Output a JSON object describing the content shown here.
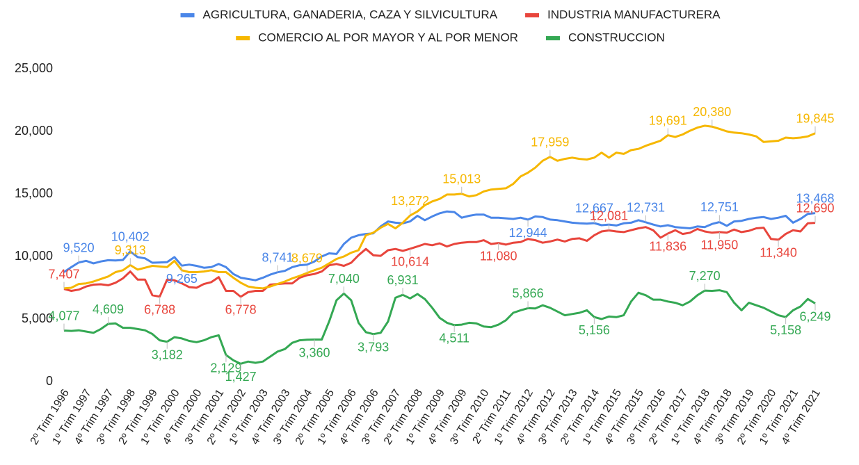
{
  "chart_data": {
    "type": "line",
    "categories": [
      "2º Trim 1996",
      null,
      null,
      "1º Trim 1997",
      null,
      null,
      "4º Trim 1997",
      null,
      null,
      "3º Trim 1998",
      null,
      null,
      "2º Trim 1999",
      null,
      null,
      "1º Trim 2000",
      null,
      null,
      "4º Trim 2000",
      null,
      null,
      "3º Trim 2001",
      null,
      null,
      "2º Trim 2002",
      null,
      null,
      "1º Trim 2003",
      null,
      null,
      "4º Trim 2003",
      null,
      null,
      "3º Trim 2004",
      null,
      null,
      "2º Trim 2005",
      null,
      null,
      "1º Trim 2006",
      null,
      null,
      "4º Trim 2006",
      null,
      null,
      "3º Trim 2007",
      null,
      null,
      "2º Trim 2008",
      null,
      null,
      "1º Trim 2009",
      null,
      null,
      "4º Trim 2009",
      null,
      null,
      "3º Trim 2010",
      null,
      null,
      "2º Trim 2011",
      null,
      null,
      "1º Trim 2012",
      null,
      null,
      "4º Trim 2012",
      null,
      null,
      "3º Trim 2013",
      null,
      null,
      "2º Trim 2014",
      null,
      null,
      "1º Trim 2015",
      null,
      null,
      "4º Trim 2015",
      null,
      null,
      "3º Trim 2016",
      null,
      null,
      "2º Trim 2017",
      null,
      null,
      "1º Trim 2018",
      null,
      null,
      "4º Trim 2018",
      null,
      null,
      "3º Trim 2019",
      null,
      null,
      "2º Trim 2020",
      null,
      null,
      "1º Trim 2021",
      null,
      null,
      "4º Trim 2021"
    ],
    "series": [
      {
        "name": "AGRICULTURA, GANADERIA, CAZA Y SILVICULTURA",
        "color": "#4a86e8",
        "values": [
          8750,
          9150,
          9520,
          9650,
          9450,
          9600,
          9700,
          9680,
          9720,
          10402,
          9950,
          9850,
          9500,
          9520,
          9550,
          9950,
          9265,
          9350,
          9250,
          9100,
          9150,
          9400,
          9150,
          8600,
          8300,
          8200,
          8100,
          8300,
          8550,
          8741,
          8850,
          9150,
          9300,
          9350,
          9600,
          10000,
          10250,
          10200,
          11000,
          11500,
          11700,
          11800,
          11850,
          12400,
          12800,
          12700,
          12650,
          12800,
          13250,
          12900,
          13200,
          13450,
          13600,
          13550,
          13100,
          13250,
          13350,
          13350,
          13100,
          13100,
          13050,
          13000,
          13100,
          12944,
          13200,
          13150,
          12950,
          12900,
          12800,
          12700,
          12650,
          12620,
          12667,
          12500,
          12550,
          12480,
          12650,
          12700,
          12900,
          12731,
          12550,
          12400,
          12500,
          12350,
          12300,
          12250,
          12400,
          12350,
          12600,
          12751,
          12450,
          12800,
          12850,
          13000,
          13100,
          13150,
          13000,
          13100,
          13250,
          12700,
          13000,
          13400,
          13468
        ],
        "value_labels": [
          null,
          null,
          "9,520",
          null,
          null,
          null,
          null,
          null,
          null,
          "10,402",
          null,
          null,
          null,
          null,
          null,
          null,
          "9,265",
          null,
          null,
          null,
          null,
          null,
          null,
          null,
          null,
          null,
          null,
          null,
          null,
          "8,741",
          null,
          null,
          null,
          null,
          null,
          null,
          null,
          null,
          null,
          null,
          null,
          null,
          null,
          null,
          null,
          null,
          null,
          null,
          null,
          null,
          null,
          null,
          null,
          null,
          null,
          null,
          null,
          null,
          null,
          null,
          null,
          null,
          null,
          "12,944",
          null,
          null,
          null,
          null,
          null,
          null,
          null,
          null,
          "12,667",
          null,
          null,
          null,
          null,
          null,
          null,
          "12,731",
          null,
          null,
          null,
          null,
          null,
          null,
          null,
          null,
          null,
          "12,751",
          null,
          null,
          null,
          null,
          null,
          null,
          null,
          null,
          null,
          null,
          null,
          null,
          "13,468"
        ]
      },
      {
        "name": "INDUSTRIA MANUFACTURERA",
        "color": "#e8453c",
        "values": [
          7407,
          7250,
          7350,
          7600,
          7750,
          7780,
          7700,
          7900,
          8250,
          8800,
          8150,
          8150,
          6900,
          6788,
          8150,
          8100,
          7850,
          7550,
          7500,
          7800,
          7950,
          8350,
          7250,
          7250,
          6778,
          7150,
          7250,
          7250,
          7750,
          7800,
          7850,
          7850,
          8300,
          8500,
          8600,
          8800,
          9300,
          9400,
          9250,
          9500,
          10100,
          10600,
          10100,
          10050,
          10500,
          10600,
          10450,
          10614,
          10800,
          11000,
          10900,
          11050,
          10800,
          11000,
          11100,
          11150,
          11150,
          11300,
          11000,
          11080,
          10950,
          11100,
          11150,
          11400,
          11300,
          11100,
          11200,
          11350,
          11200,
          11400,
          11450,
          11250,
          11700,
          12000,
          12081,
          12000,
          11950,
          12100,
          12250,
          12350,
          12100,
          11500,
          11836,
          12100,
          11800,
          11900,
          12200,
          12000,
          11900,
          11950,
          11900,
          12150,
          11950,
          12050,
          12250,
          12300,
          11400,
          11340,
          11800,
          12100,
          12000,
          12650,
          12690
        ],
        "value_labels": [
          "7,407",
          null,
          null,
          null,
          null,
          null,
          null,
          null,
          null,
          null,
          null,
          null,
          null,
          "6,788",
          null,
          null,
          null,
          null,
          null,
          null,
          null,
          null,
          null,
          null,
          "6,778",
          null,
          null,
          null,
          null,
          null,
          null,
          null,
          null,
          null,
          null,
          null,
          null,
          null,
          null,
          null,
          null,
          null,
          null,
          null,
          null,
          null,
          null,
          "10,614",
          null,
          null,
          null,
          null,
          null,
          null,
          null,
          null,
          null,
          null,
          null,
          "11,080",
          null,
          null,
          null,
          null,
          null,
          null,
          null,
          null,
          null,
          null,
          null,
          null,
          null,
          null,
          "12,081",
          null,
          null,
          null,
          null,
          null,
          null,
          null,
          "11,836",
          null,
          null,
          null,
          null,
          null,
          null,
          "11,950",
          null,
          null,
          null,
          null,
          null,
          null,
          null,
          "11,340",
          null,
          null,
          null,
          null,
          "12,690"
        ]
      },
      {
        "name": "COMERCIO AL POR MAYOR Y AL POR MENOR",
        "color": "#f6b700",
        "values": [
          7450,
          7500,
          7800,
          7850,
          8000,
          8200,
          8400,
          8750,
          8900,
          9313,
          8950,
          9100,
          9250,
          9200,
          9150,
          9650,
          8900,
          8750,
          8750,
          8800,
          8900,
          8750,
          8750,
          8300,
          7900,
          7600,
          7500,
          7450,
          7600,
          7800,
          8000,
          8250,
          8450,
          8679,
          8900,
          9100,
          9450,
          9800,
          10000,
          10300,
          10500,
          11700,
          11900,
          12300,
          12600,
          12250,
          12700,
          13272,
          13600,
          14100,
          14400,
          14600,
          14950,
          14950,
          15013,
          14800,
          14900,
          15200,
          15350,
          15400,
          15450,
          15800,
          16400,
          16700,
          17100,
          17650,
          17959,
          17650,
          17800,
          17900,
          17800,
          17750,
          17900,
          18300,
          17900,
          18300,
          18200,
          18500,
          18600,
          18850,
          19050,
          19250,
          19691,
          19550,
          19750,
          20050,
          20300,
          20450,
          20380,
          20200,
          20000,
          19900,
          19850,
          19750,
          19600,
          19150,
          19200,
          19250,
          19500,
          19450,
          19500,
          19600,
          19845
        ],
        "value_labels": [
          null,
          null,
          null,
          null,
          null,
          null,
          null,
          null,
          null,
          "9,313",
          null,
          null,
          null,
          null,
          null,
          null,
          null,
          null,
          null,
          null,
          null,
          null,
          null,
          null,
          null,
          null,
          null,
          null,
          null,
          null,
          null,
          null,
          null,
          "8,679",
          null,
          null,
          null,
          null,
          null,
          null,
          null,
          null,
          null,
          null,
          null,
          null,
          null,
          "13,272",
          null,
          null,
          null,
          null,
          null,
          null,
          "15,013",
          null,
          null,
          null,
          null,
          null,
          null,
          null,
          null,
          null,
          null,
          null,
          "17,959",
          null,
          null,
          null,
          null,
          null,
          null,
          null,
          null,
          null,
          null,
          null,
          null,
          null,
          null,
          null,
          "19,691",
          null,
          null,
          null,
          null,
          null,
          "20,380",
          null,
          null,
          null,
          null,
          null,
          null,
          null,
          null,
          null,
          null,
          null,
          null,
          null,
          "19,845"
        ]
      },
      {
        "name": "CONSTRUCCION",
        "color": "#34a853",
        "values": [
          4077,
          4050,
          4100,
          4000,
          3900,
          4200,
          4609,
          4650,
          4300,
          4300,
          4200,
          4100,
          3800,
          3300,
          3182,
          3550,
          3450,
          3250,
          3150,
          3300,
          3550,
          3700,
          2129,
          1700,
          1427,
          1600,
          1500,
          1600,
          2000,
          2400,
          2600,
          3100,
          3300,
          3350,
          3360,
          3360,
          4800,
          6500,
          7040,
          6500,
          4700,
          3950,
          3793,
          3900,
          4800,
          6700,
          6931,
          6650,
          7000,
          6600,
          5900,
          5100,
          4700,
          4511,
          4550,
          4700,
          4650,
          4400,
          4350,
          4550,
          4900,
          5500,
          5700,
          5866,
          5850,
          6100,
          5900,
          5600,
          5300,
          5400,
          5500,
          5700,
          5156,
          5000,
          5200,
          5150,
          5300,
          6400,
          7100,
          6900,
          6550,
          6550,
          6400,
          6300,
          6100,
          6400,
          6900,
          7270,
          7250,
          7300,
          7150,
          6300,
          5700,
          6300,
          6100,
          5900,
          5600,
          5300,
          5158,
          5700,
          6000,
          6600,
          6249
        ],
        "value_labels": [
          "4,077",
          null,
          null,
          null,
          null,
          null,
          "4,609",
          null,
          null,
          null,
          null,
          null,
          null,
          null,
          "3,182",
          null,
          null,
          null,
          null,
          null,
          null,
          null,
          "2,129",
          null,
          "1,427",
          null,
          null,
          null,
          null,
          null,
          null,
          null,
          null,
          null,
          "3,360",
          null,
          null,
          null,
          "7,040",
          null,
          null,
          null,
          "3,793",
          null,
          null,
          null,
          "6,931",
          null,
          null,
          null,
          null,
          null,
          null,
          "4,511",
          null,
          null,
          null,
          null,
          null,
          null,
          null,
          null,
          null,
          "5,866",
          null,
          null,
          null,
          null,
          null,
          null,
          null,
          null,
          "5,156",
          null,
          null,
          null,
          null,
          null,
          null,
          null,
          null,
          null,
          null,
          null,
          null,
          null,
          null,
          "7,270",
          null,
          null,
          null,
          null,
          null,
          null,
          null,
          null,
          null,
          null,
          "5,158",
          null,
          null,
          null,
          "6,249"
        ]
      }
    ],
    "ylim": [
      0,
      25000
    ],
    "yticks": [
      0,
      {
        "value": 5000,
        "label": "5,000"
      },
      {
        "value": 10000,
        "label": "10,000"
      },
      {
        "value": 15000,
        "label": "15,000"
      },
      {
        "value": 20000,
        "label": "20,000"
      },
      {
        "value": 25000,
        "label": "25,000"
      }
    ],
    "grid": false,
    "legend": "top"
  }
}
